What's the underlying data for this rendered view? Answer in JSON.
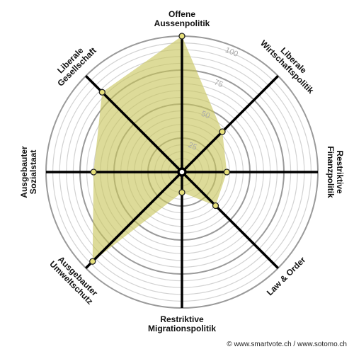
{
  "chart_data": {
    "type": "radar",
    "title": "",
    "axes": [
      {
        "label_lines": [
          "Offene",
          "Aussenpolitik"
        ],
        "value": 100
      },
      {
        "label_lines": [
          "Liberale",
          "Wirtschaftspolitik"
        ],
        "value": 42
      },
      {
        "label_lines": [
          "Restriktive",
          "Finanzpolitik"
        ],
        "value": 33
      },
      {
        "label_lines": [
          "Law & Order"
        ],
        "value": 35
      },
      {
        "label_lines": [
          "Restriktive",
          "Migrationspolitik"
        ],
        "value": 15
      },
      {
        "label_lines": [
          "Ausgebauter",
          "Umweltschutz"
        ],
        "value": 93
      },
      {
        "label_lines": [
          "Ausgebauter",
          "Sozialstaat"
        ],
        "value": 65
      },
      {
        "label_lines": [
          "Liberale",
          "Gesellschaft"
        ],
        "value": 83
      }
    ],
    "rlim": [
      0,
      100
    ],
    "tick_values": [
      25,
      50,
      75,
      100
    ],
    "tick_labels": [
      "25",
      "50",
      "75",
      "100"
    ],
    "colors": {
      "fill": "#c8c55a",
      "fill_opacity": 0.62,
      "point_fill": "#e7e07a",
      "axis": "#000000",
      "ring_major": "#9a9a9a",
      "ring_minor": "#d2d2d2"
    }
  },
  "credit": "© www.smartvote.ch / www.sotomo.ch"
}
